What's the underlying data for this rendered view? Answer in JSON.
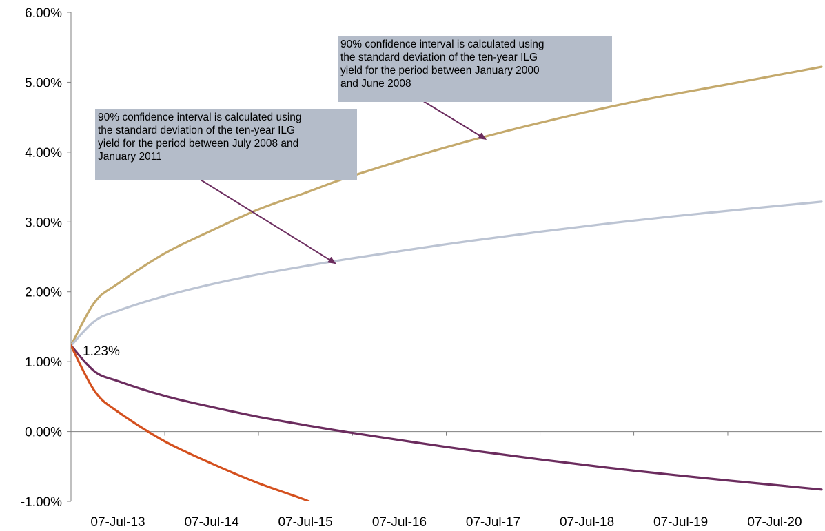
{
  "chart_data": {
    "type": "line",
    "title": "",
    "xlabel": "",
    "ylabel": "",
    "x_tick_labels": [
      "07-Jul-13",
      "07-Jul-14",
      "07-Jul-15",
      "07-Jul-16",
      "07-Jul-17",
      "07-Jul-18",
      "07-Jul-19",
      "07-Jul-20"
    ],
    "x_range": [
      "07-Jul-13",
      "07-Jul-21"
    ],
    "y_tick_labels": [
      "-1.00%",
      "0.00%",
      "1.00%",
      "2.00%",
      "3.00%",
      "4.00%",
      "5.00%",
      "6.00%"
    ],
    "ylim": [
      -1.0,
      6.0
    ],
    "y_unit": "%",
    "grid": false,
    "legend": "none",
    "start_value": 1.23,
    "start_label": "1.23%",
    "series": [
      {
        "color": "#c4a96c",
        "points": [
          [
            "07-Jul-13",
            1.23
          ],
          [
            "07-Oct-13",
            1.85
          ],
          [
            "07-Jan-14",
            2.12
          ],
          [
            "07-Jul-14",
            2.55
          ],
          [
            "07-Jan-15",
            2.88
          ],
          [
            "07-Jul-15",
            3.18
          ],
          [
            "07-Jan-16",
            3.42
          ],
          [
            "07-Jul-16",
            3.66
          ],
          [
            "07-Jul-17",
            4.07
          ],
          [
            "07-Jul-18",
            4.42
          ],
          [
            "07-Jul-19",
            4.72
          ],
          [
            "07-Jul-20",
            4.97
          ],
          [
            "07-Jul-21",
            5.22
          ]
        ]
      },
      {
        "color": "#bcc4d3",
        "points": [
          [
            "07-Jul-13",
            1.23
          ],
          [
            "07-Oct-13",
            1.58
          ],
          [
            "07-Jan-14",
            1.73
          ],
          [
            "07-Jul-14",
            1.94
          ],
          [
            "07-Jan-15",
            2.11
          ],
          [
            "07-Jul-15",
            2.25
          ],
          [
            "07-Jan-16",
            2.37
          ],
          [
            "07-Jul-16",
            2.48
          ],
          [
            "07-Jul-17",
            2.68
          ],
          [
            "07-Jul-18",
            2.86
          ],
          [
            "07-Jul-19",
            3.02
          ],
          [
            "07-Jul-20",
            3.16
          ],
          [
            "07-Jul-21",
            3.29
          ]
        ]
      },
      {
        "color": "#6b2c5e",
        "points": [
          [
            "07-Jul-13",
            1.23
          ],
          [
            "07-Oct-13",
            0.86
          ],
          [
            "07-Jan-14",
            0.72
          ],
          [
            "07-Jul-14",
            0.51
          ],
          [
            "07-Jan-15",
            0.35
          ],
          [
            "07-Jul-15",
            0.21
          ],
          [
            "07-Jan-16",
            0.09
          ],
          [
            "07-Jul-16",
            -0.02
          ],
          [
            "07-Jul-17",
            -0.22
          ],
          [
            "07-Jul-18",
            -0.4
          ],
          [
            "07-Jul-19",
            -0.56
          ],
          [
            "07-Jul-20",
            -0.7
          ],
          [
            "07-Jul-21",
            -0.83
          ]
        ]
      },
      {
        "color": "#d4501e",
        "points": [
          [
            "07-Jul-13",
            1.23
          ],
          [
            "07-Oct-13",
            0.58
          ],
          [
            "07-Jan-14",
            0.28
          ],
          [
            "07-Jul-14",
            -0.14
          ],
          [
            "07-Jan-15",
            -0.46
          ],
          [
            "07-Jul-15",
            -0.74
          ],
          [
            "07-Jan-16",
            -0.98
          ],
          [
            "01-Feb-16",
            -1.05
          ]
        ]
      }
    ],
    "annotations": [
      {
        "text": "90% confidence interval is calculated using the standard deviation of the ten-year ILG yield for the period between January 2000 and June 2008",
        "lines": [
          "90% confidence interval is calculated using",
          "the standard deviation of the ten-year ILG",
          "yield for the period between January 2000",
          "and June 2008"
        ],
        "points_to_series": 0,
        "arrow_color": "#6b2c5e"
      },
      {
        "text": "90% confidence interval is calculated using the standard deviation of the ten-year ILG yield for the period between July 2008 and January 2011",
        "lines": [
          "90% confidence interval is calculated using",
          "the standard deviation of the ten-year ILG",
          "yield for the period between July 2008 and",
          "January 2011"
        ],
        "points_to_series": 1,
        "arrow_color": "#6b2c5e"
      }
    ]
  }
}
